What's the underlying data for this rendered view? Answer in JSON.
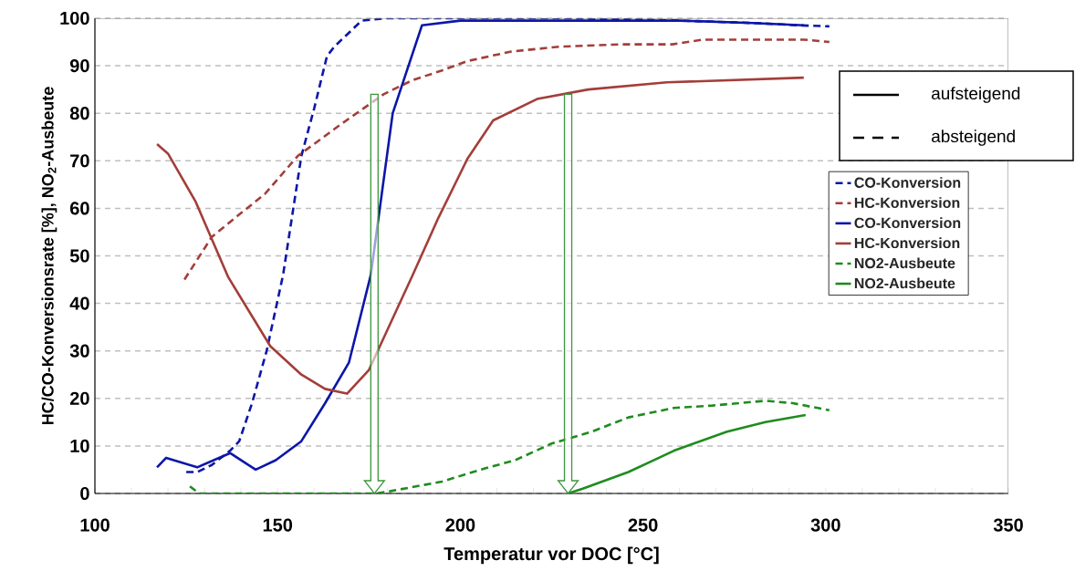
{
  "chart_data": {
    "type": "line",
    "xlabel": "Temperatur vor DOC [°C]",
    "ylabel": "HC/CO-Konversionsrate [%], NO$_{2}$-Ausbeute",
    "xlim": [
      100,
      350
    ],
    "ylim": [
      0,
      100
    ],
    "xticks": [
      100,
      150,
      200,
      250,
      300,
      350
    ],
    "yticks": [
      0,
      10,
      20,
      30,
      40,
      50,
      60,
      70,
      80,
      90,
      100
    ],
    "grid": "y",
    "legend": "right",
    "annotations": [
      "aufsteigend",
      "absteigend"
    ],
    "series": [
      {
        "name": "CO-Konversion",
        "color": "#0c16a8",
        "line_style": "dashed",
        "x": [
          125,
          128,
          132,
          137,
          139.5,
          143,
          147,
          151.5,
          156.5,
          160,
          163.5,
          165.5,
          173,
          180,
          200,
          230,
          260,
          280,
          293,
          301
        ],
        "values": [
          4.5,
          4.5,
          6,
          9,
          11,
          19,
          30,
          46,
          71,
          81,
          92,
          94,
          99.5,
          100,
          100,
          100,
          99.5,
          99,
          98.5,
          98.3
        ]
      },
      {
        "name": "HC-Konversion",
        "color": "#a33e3a",
        "line_style": "dashed",
        "x": [
          124.5,
          132,
          140,
          146.5,
          155.5,
          167,
          179,
          187,
          195,
          202,
          214,
          227,
          244,
          258,
          266.5,
          280,
          294,
          301
        ],
        "values": [
          45,
          54,
          59,
          63,
          71,
          77.5,
          84,
          87,
          89,
          91,
          93,
          94,
          94.5,
          94.5,
          95.5,
          95.5,
          95.5,
          95
        ]
      },
      {
        "name": "CO-Konversion",
        "color": "#0c16a8",
        "line_style": "solid",
        "x": [
          117,
          119.5,
          128,
          137,
          144,
          149.5,
          156.5,
          163,
          169.5,
          175.5,
          181.5,
          189.5,
          200,
          230,
          260,
          280,
          294
        ],
        "values": [
          5.5,
          7.5,
          5.5,
          8.5,
          5,
          7,
          11,
          19,
          27.5,
          46,
          80,
          98.5,
          99.5,
          99.5,
          99.5,
          99,
          98.5
        ]
      },
      {
        "name": "HC-Konversion",
        "color": "#a33e3a",
        "line_style": "solid",
        "x": [
          117,
          120,
          127.5,
          132,
          136.5,
          148,
          156.5,
          163,
          169,
          175,
          187,
          194,
          202,
          209,
          221,
          235,
          256.5,
          294
        ],
        "values": [
          73.5,
          71.5,
          61.5,
          53.5,
          45.5,
          31,
          25,
          22,
          21,
          26,
          46,
          58,
          70.5,
          78.5,
          83,
          85,
          86.5,
          87.5
        ]
      },
      {
        "name": "NO2-Ausbeute",
        "color": "#1e8c1e",
        "line_style": "dashed",
        "x": [
          126,
          128.5,
          177,
          181,
          195,
          205.5,
          215,
          225,
          236,
          246,
          258.5,
          269,
          283.5,
          291,
          301
        ],
        "values": [
          1.5,
          0,
          0,
          0.5,
          2.5,
          5,
          7,
          10.5,
          13,
          16,
          18,
          18.5,
          19.5,
          19,
          17.5
        ]
      },
      {
        "name": "NO2-Ausbeute",
        "color": "#1e8c1e",
        "line_style": "solid",
        "x": [
          229.5,
          233.5,
          246,
          258.5,
          273,
          283.5,
          294.5
        ],
        "values": [
          0,
          1,
          4.5,
          9,
          13,
          15,
          16.5
        ]
      }
    ]
  }
}
